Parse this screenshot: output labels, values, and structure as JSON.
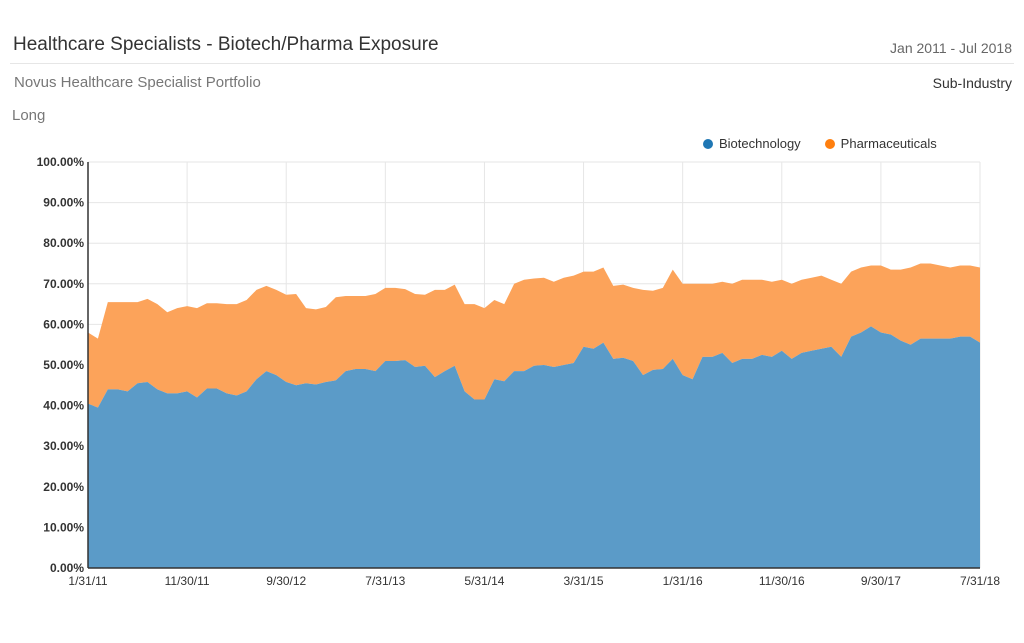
{
  "header": {
    "title": "Healthcare Specialists - Biotech/Pharma Exposure",
    "date_range": "Jan 2011 - Jul 2018",
    "portfolio": "Novus Healthcare Specialist Portfolio",
    "grouping": "Sub-Industry",
    "side": "Long"
  },
  "chart_data": {
    "type": "area",
    "stacked": true,
    "title": "Healthcare Specialists - Biotech/Pharma Exposure",
    "xlabel": "",
    "ylabel": "",
    "ylim": [
      0,
      100
    ],
    "y_ticks": [
      "0.00%",
      "10.00%",
      "20.00%",
      "30.00%",
      "40.00%",
      "50.00%",
      "60.00%",
      "70.00%",
      "80.00%",
      "90.00%",
      "100.00%"
    ],
    "x_ticks": [
      "1/31/11",
      "11/30/11",
      "9/30/12",
      "7/31/13",
      "5/31/14",
      "3/31/15",
      "1/31/16",
      "11/30/16",
      "9/30/17",
      "7/31/18"
    ],
    "x_start": "2011-01",
    "x_end": "2018-07",
    "grid": true,
    "legend_position": "top-right",
    "series": [
      {
        "name": "Biotechnology",
        "color": "#1f77b4",
        "fill": "#5b9bc8",
        "values": [
          40.5,
          39.5,
          44,
          44,
          43.5,
          45.5,
          45.8,
          44,
          43,
          43,
          43.5,
          42,
          44.2,
          44.2,
          43,
          42.5,
          43.5,
          46.5,
          48.5,
          47.5,
          45.8,
          45,
          45.5,
          45.2,
          45.8,
          46.2,
          48.5,
          49,
          49,
          48.5,
          51,
          51,
          51.2,
          49.5,
          49.8,
          47,
          48.5,
          49.8,
          43.5,
          41.5,
          41.5,
          46.5,
          46,
          48.5,
          48.5,
          49.8,
          50,
          49.5,
          50,
          50.5,
          54.5,
          54,
          55.5,
          51.5,
          51.8,
          51,
          47.5,
          48.8,
          49,
          51.5,
          47.5,
          46.5,
          52,
          52,
          53,
          50.5,
          51.5,
          51.5,
          52.5,
          52,
          53.5,
          51.5,
          53,
          53.5,
          54,
          54.5,
          52,
          57,
          58,
          59.5,
          58,
          57.5,
          56,
          55,
          56.5,
          56.5,
          56.5,
          56.5,
          57,
          57,
          55.5
        ]
      },
      {
        "name": "Pharmaceuticals",
        "color": "#ff7f0e",
        "fill": "#fca35a",
        "values": [
          17.5,
          17,
          21.5,
          21.5,
          22,
          20,
          20.5,
          21,
          20,
          21,
          21,
          22,
          21,
          21,
          22,
          22.5,
          22.5,
          22,
          21,
          21,
          21.5,
          22.5,
          18.5,
          18.5,
          18.5,
          20.5,
          18.5,
          18,
          18,
          19,
          18,
          18,
          17.5,
          18,
          17.5,
          21.5,
          20,
          20,
          21.5,
          23.5,
          22.5,
          19.5,
          19,
          21.5,
          22.5,
          21.5,
          21.5,
          21,
          21.5,
          21.5,
          18.5,
          19,
          18.5,
          18,
          18,
          18,
          21,
          19.5,
          20,
          22,
          22.5,
          23.5,
          18,
          18,
          17.5,
          19.5,
          19.5,
          19.5,
          18.5,
          18.5,
          17.5,
          18.5,
          18,
          18,
          18,
          16.5,
          18,
          16,
          16,
          15,
          16.5,
          16,
          17.5,
          19,
          18.5,
          18.5,
          18,
          17.5,
          17.5,
          17.5,
          18.5
        ]
      }
    ]
  }
}
